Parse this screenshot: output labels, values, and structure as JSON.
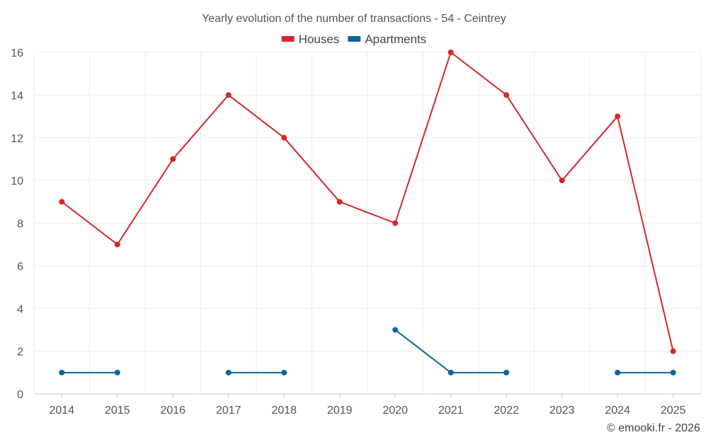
{
  "chart_data": {
    "type": "line",
    "title": "Yearly evolution of the number of transactions - 54 - Ceintrey",
    "categories": [
      "2014",
      "2015",
      "2016",
      "2017",
      "2018",
      "2019",
      "2020",
      "2021",
      "2022",
      "2023",
      "2024",
      "2025"
    ],
    "ylim": [
      0,
      16
    ],
    "yticks": [
      0,
      2,
      4,
      6,
      8,
      10,
      12,
      14,
      16
    ],
    "grid": true,
    "legend_position": "top-center",
    "series": [
      {
        "name": "Houses",
        "color": "#d62728",
        "values": [
          9,
          7,
          11,
          14,
          12,
          9,
          8,
          16,
          14,
          10,
          13,
          2
        ]
      },
      {
        "name": "Apartments",
        "color": "#0b6798",
        "values": [
          1,
          1,
          null,
          1,
          1,
          null,
          3,
          1,
          1,
          null,
          1,
          1
        ]
      }
    ]
  },
  "footer": {
    "credit": "© emooki.fr - 2026"
  }
}
